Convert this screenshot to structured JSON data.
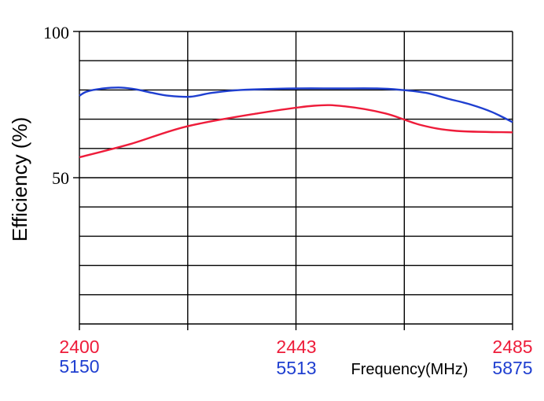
{
  "chart_data": {
    "type": "line",
    "title": "",
    "ylabel": "Efficiency (%)",
    "xlabel": "Frequency(MHz)",
    "ylim": [
      0,
      100
    ],
    "y_ticks": [
      "100",
      "50"
    ],
    "y_tick_values": [
      100,
      50
    ],
    "grid": true,
    "x_axes": [
      {
        "color": "#ee1c3a",
        "range": [
          2400,
          2485
        ],
        "tick_labels": [
          "2400",
          "2443",
          "2485"
        ],
        "tick_values": [
          2400,
          2443,
          2485
        ]
      },
      {
        "color": "#1f3fd0",
        "range": [
          5150,
          5875
        ],
        "tick_labels": [
          "5150",
          "5513",
          "5875"
        ],
        "tick_values": [
          5150,
          5513,
          5875
        ]
      }
    ],
    "series": [
      {
        "color": "#1f3fd0",
        "x_axis": 1,
        "x": [
          5150,
          5163,
          5190,
          5220,
          5245,
          5272,
          5300,
          5336,
          5372,
          5420,
          5513,
          5580,
          5648,
          5690,
          5730,
          5767,
          5805,
          5840,
          5875
        ],
        "y": [
          78.0,
          79.5,
          80.5,
          80.8,
          80.2,
          79.0,
          78.0,
          77.7,
          79.0,
          80.0,
          80.5,
          80.5,
          80.5,
          80.0,
          79.0,
          77.0,
          75.0,
          72.5,
          69.0
        ]
      },
      {
        "color": "#ee1c3a",
        "x_axis": 0,
        "x": [
          2400,
          2410,
          2421,
          2435,
          2446,
          2452,
          2460,
          2467,
          2474,
          2485
        ],
        "y": [
          57.0,
          61.5,
          67.5,
          72.0,
          74.6,
          74.4,
          72.0,
          68.0,
          66.0,
          65.5
        ]
      }
    ]
  }
}
